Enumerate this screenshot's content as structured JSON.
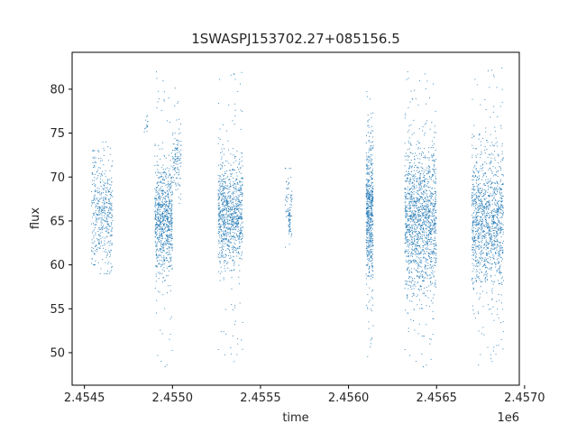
{
  "chart_data": {
    "type": "scatter",
    "title": "1SWASPJ153702.27+085156.5",
    "xlabel": "time",
    "ylabel": "flux",
    "x_offset_label": "1e6",
    "xlim": [
      2.45443,
      2.45697
    ],
    "ylim": [
      46.3,
      84.2
    ],
    "x_ticks": [
      2.4545,
      2.455,
      2.4555,
      2.456,
      2.4565,
      2.457
    ],
    "x_tick_labels": [
      "2.4545",
      "2.4550",
      "2.4555",
      "2.4560",
      "2.4565",
      "2.4570"
    ],
    "y_ticks": [
      50,
      55,
      60,
      65,
      70,
      75,
      80
    ],
    "y_tick_labels": [
      "50",
      "55",
      "60",
      "65",
      "70",
      "75",
      "80"
    ],
    "grid": false,
    "marker_color": "#1f77b4",
    "point_groups": [
      {
        "x_range": [
          2.45454,
          2.45458
        ],
        "center": 66.5,
        "spread": 3.5,
        "min": 60.0,
        "max": 73.0,
        "density": 140
      },
      {
        "x_range": [
          2.45458,
          2.45466
        ],
        "center": 66.0,
        "spread": 3.0,
        "min": 59.0,
        "max": 74.0,
        "density": 320
      },
      {
        "x_range": [
          2.45484,
          2.45486
        ],
        "center": 76.0,
        "spread": 0.6,
        "min": 75.0,
        "max": 77.0,
        "density": 14
      },
      {
        "x_range": [
          2.4549,
          2.455
        ],
        "center": 65.0,
        "spread": 3.0,
        "min": 48.0,
        "max": 82.0,
        "density": 820
      },
      {
        "x_range": [
          2.455,
          2.45505
        ],
        "center": 71.5,
        "spread": 2.0,
        "min": 67.0,
        "max": 81.0,
        "density": 120
      },
      {
        "x_range": [
          2.45526,
          2.4554
        ],
        "center": 66.0,
        "spread": 2.8,
        "min": 48.0,
        "max": 82.0,
        "density": 980
      },
      {
        "x_range": [
          2.45564,
          2.45568
        ],
        "center": 67.0,
        "spread": 2.0,
        "min": 62.0,
        "max": 71.0,
        "density": 60
      },
      {
        "x_range": [
          2.45566,
          2.45567
        ],
        "center": 65.0,
        "spread": 0.8,
        "min": 63.5,
        "max": 66.5,
        "density": 40
      },
      {
        "x_range": [
          2.4561,
          2.45614
        ],
        "center": 66.0,
        "spread": 4.0,
        "min": 49.0,
        "max": 81.0,
        "density": 620
      },
      {
        "x_range": [
          2.45632,
          2.4565
        ],
        "center": 65.0,
        "spread": 4.2,
        "min": 48.0,
        "max": 82.0,
        "density": 1500
      },
      {
        "x_range": [
          2.4567,
          2.45688
        ],
        "center": 65.0,
        "spread": 3.8,
        "min": 48.0,
        "max": 82.5,
        "density": 1250
      }
    ]
  }
}
